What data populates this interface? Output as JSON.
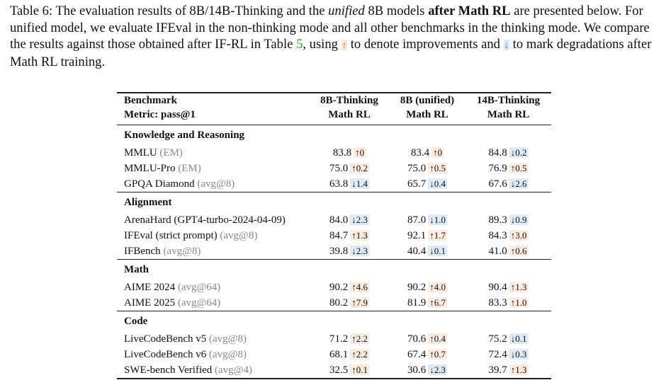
{
  "caption": [
    "Table 6: The evaluation results of 8B/14B-Thinking and the ",
    "unified",
    " 8B models ",
    "after Math RL",
    " are presented below. For unified model, we evaluate IFEval in the non-thinking mode and all other benchmarks in the thinking mode. We compare the results against those obtained after IF-RL in Table ",
    "5",
    ", using ",
    "↑",
    " to denote improvements and ",
    "↓",
    " to mark degradations after Math RL training."
  ],
  "table": {
    "header": [
      [
        "Benchmark",
        "Metric: pass@1"
      ],
      [
        "8B-Thinking",
        "Math RL"
      ],
      [
        "8B (unified)",
        "Math RL"
      ],
      [
        "14B-Thinking",
        "Math RL"
      ]
    ],
    "sections": [
      {
        "title": "Knowledge and Reasoning",
        "rows": [
          {
            "name": "MMLU",
            "metric": "(EM)",
            "cells": [
              {
                "value": "83.8",
                "delta": "↑0"
              },
              {
                "value": "83.4",
                "delta": "↑0"
              },
              {
                "value": "84.8",
                "delta": "↓0.2"
              }
            ]
          },
          {
            "name": "MMLU-Pro",
            "metric": "(EM)",
            "cells": [
              {
                "value": "75.0",
                "delta": "↑0.2"
              },
              {
                "value": "75.0",
                "delta": "↑0.5"
              },
              {
                "value": "76.9",
                "delta": "↑0.5"
              }
            ]
          },
          {
            "name": "GPQA Diamond",
            "metric": "(avg@8)",
            "cells": [
              {
                "value": "63.8",
                "delta": "↓1.4"
              },
              {
                "value": "65.7",
                "delta": "↓0.4"
              },
              {
                "value": "67.6",
                "delta": "↓2.6"
              }
            ]
          }
        ]
      },
      {
        "title": "Alignment",
        "rows": [
          {
            "name": "ArenaHard (GPT4-turbo-2024-04-09)",
            "cells": [
              {
                "value": "84.0",
                "delta": "↓2.3"
              },
              {
                "value": "87.0",
                "delta": "↓1.0"
              },
              {
                "value": "89.3",
                "delta": "↓0.9"
              }
            ]
          },
          {
            "name": "IFEval (strict prompt)",
            "metric": "(avg@8)",
            "cells": [
              {
                "value": "84.7",
                "delta": "↑1.3"
              },
              {
                "value": "92.1",
                "delta": "↑1.7"
              },
              {
                "value": "84.3",
                "delta": "↑3.0"
              }
            ]
          },
          {
            "name": "IFBench",
            "metric": "(avg@8)",
            "cells": [
              {
                "value": "39.8",
                "delta": "↓2.3"
              },
              {
                "value": "40.4",
                "delta": "↓0.1"
              },
              {
                "value": "41.0",
                "delta": "↑0.6"
              }
            ]
          }
        ]
      },
      {
        "title": "Math",
        "rows": [
          {
            "name": "AIME 2024",
            "metric": "(avg@64)",
            "cells": [
              {
                "value": "90.2",
                "delta": "↑4.6"
              },
              {
                "value": "90.2",
                "delta": "↑4.0"
              },
              {
                "value": "90.4",
                "delta": "↑1.3"
              }
            ]
          },
          {
            "name": "AIME 2025",
            "metric": "(avg@64)",
            "cells": [
              {
                "value": "80.2",
                "delta": "↑7.9"
              },
              {
                "value": "81.9",
                "delta": "↑6.7"
              },
              {
                "value": "83.3",
                "delta": "↑1.0"
              }
            ]
          }
        ]
      },
      {
        "title": "Code",
        "rows": [
          {
            "name": "LiveCodeBench v5",
            "metric": "(avg@8)",
            "cells": [
              {
                "value": "71.2",
                "delta": "↑2.2"
              },
              {
                "value": "70.6",
                "delta": "↑0.4"
              },
              {
                "value": "75.2",
                "delta": "↓0.1"
              }
            ]
          },
          {
            "name": "LiveCodeBench v6",
            "metric": "(avg@8)",
            "cells": [
              {
                "value": "68.1",
                "delta": "↑2.2"
              },
              {
                "value": "67.4",
                "delta": "↑0.7"
              },
              {
                "value": "72.4",
                "delta": "↓0.3"
              }
            ]
          },
          {
            "name": "SWE-bench Verified",
            "metric": "(avg@4)",
            "cells": [
              {
                "value": "32.5",
                "delta": "↑0.1"
              },
              {
                "value": "30.6",
                "delta": "↓2.3"
              },
              {
                "value": "39.7",
                "delta": "↑1.3"
              }
            ]
          }
        ]
      }
    ]
  }
}
